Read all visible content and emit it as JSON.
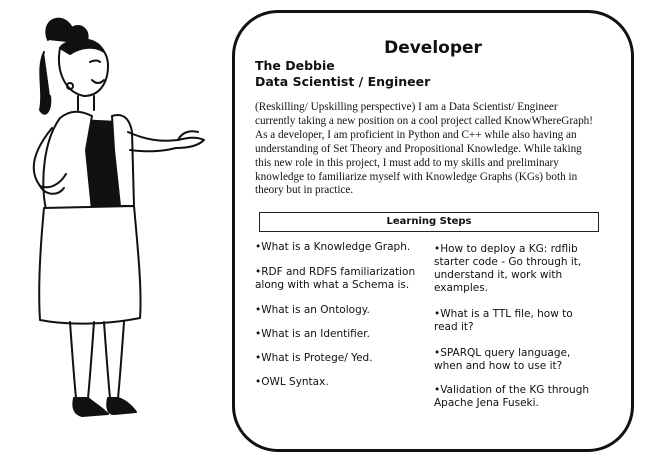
{
  "card": {
    "title": "Developer",
    "name_line1": "The Debbie",
    "name_line2": "Data Scientist / Engineer",
    "description_lines": [
      "(Reskilling/ Upskilling perspective) I am a Data Scientist/ Engineer",
      "currently taking a new position on a cool project called KnowWhereGraph!",
      "As a developer, I am proficient in Python and C++ while also having an",
      "understanding of Set Theory and Propositional Knowledge. While taking",
      "this new role in this project, I must add to my skills and preliminary",
      "knowledge to familiarize myself with Knowledge Graphs (KGs) both in",
      "theory but in practice."
    ],
    "learning_steps_title": "Learning Steps",
    "left_steps": [
      [
        "•What is a Knowledge Graph."
      ],
      [
        "•RDF and RDFS familiarization",
        "along with what a Schema is."
      ],
      [
        "•What is an Ontology."
      ],
      [
        "•What is an Identifier."
      ],
      [
        "•What is Protege/ Yed."
      ],
      [
        "•OWL Syntax."
      ]
    ],
    "right_steps": [
      [
        "•How to deploy a KG: rdflib",
        "starter code - Go through it,",
        "understand it, work with",
        "examples."
      ],
      [
        "•What is a TTL file, how to",
        "read it?"
      ],
      [
        "•SPARQL query language,",
        "when and how to use it?"
      ],
      [
        "•Validation of the KG through",
        "Apache Jena Fuseki."
      ]
    ]
  },
  "illustration": {
    "description_icon": "woman-presenting-figure"
  }
}
